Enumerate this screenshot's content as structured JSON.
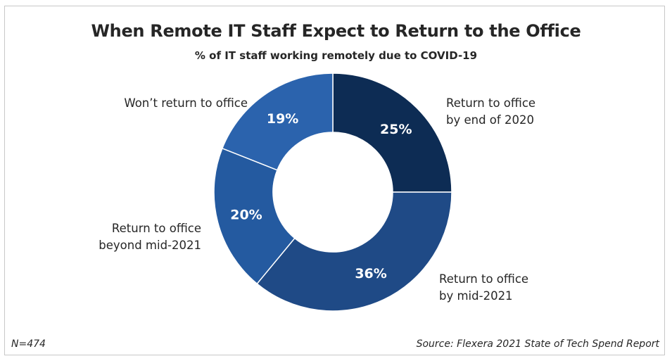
{
  "title": "When Remote IT Staff Expect to Return to the Office",
  "subtitle": "% of IT staff working remotely due to COVID-19",
  "footer": {
    "n_label": "N=474",
    "source": "Source: Flexera 2021 State of Tech Spend Report"
  },
  "chart_data": {
    "type": "pie",
    "variant": "donut",
    "title": "When Remote IT Staff Expect to Return to the Office",
    "subtitle": "% of IT staff working remotely due to COVID-19",
    "categories": [
      "Return to office by end of 2020",
      "Return to office by mid-2021",
      "Return to office beyond mid-2021",
      "Won't return to office"
    ],
    "values": [
      25,
      36,
      20,
      19
    ],
    "value_labels": [
      "25%",
      "36%",
      "20%",
      "19%"
    ],
    "label_lines": [
      [
        "Return to office",
        "by end of 2020"
      ],
      [
        "Return to office",
        "by mid-2021"
      ],
      [
        "Return to office",
        "beyond mid-2021"
      ],
      [
        "Won’t return to office"
      ]
    ],
    "colors": [
      "#0d2c54",
      "#1f4a86",
      "#245aa0",
      "#2b63ad"
    ],
    "unit": "%"
  }
}
